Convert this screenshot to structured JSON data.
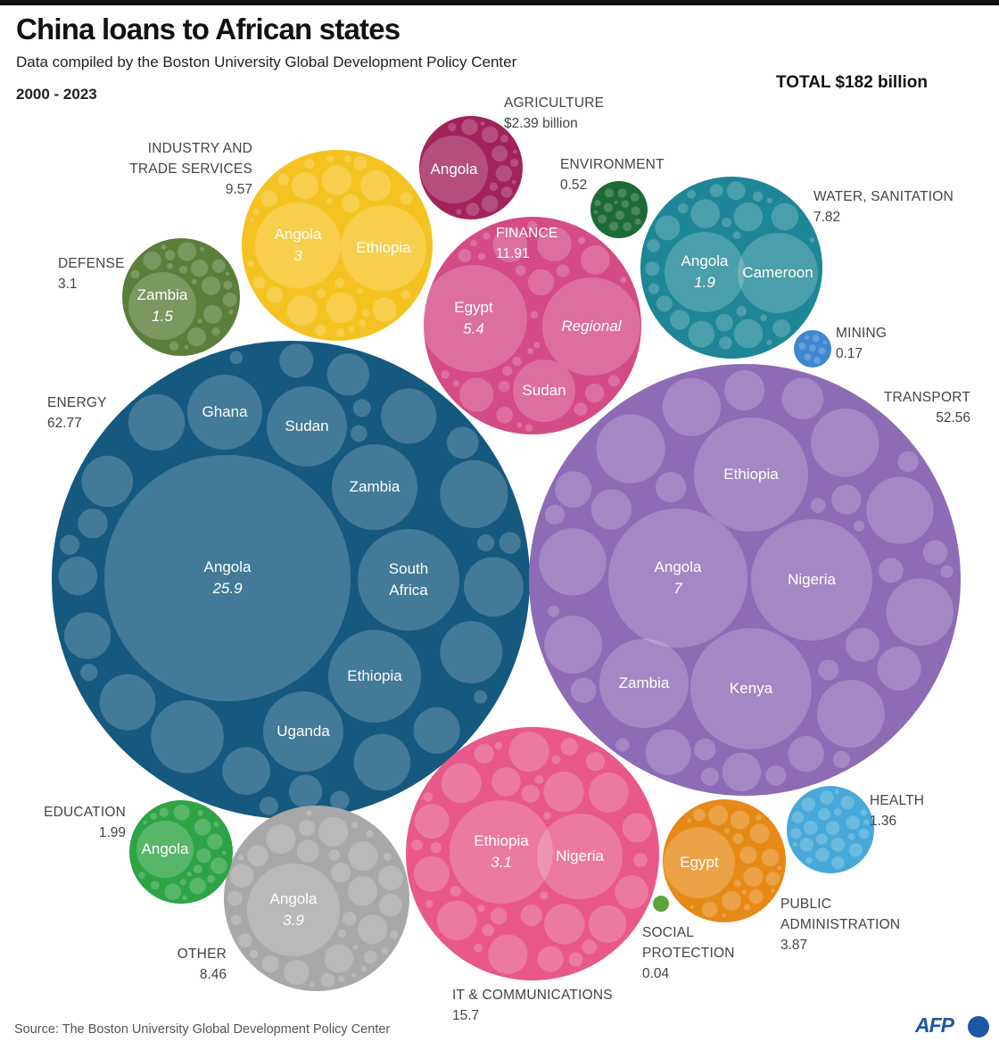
{
  "header": {
    "title": "China loans to African states",
    "subtitle": "Data compiled by the Boston University Global Development Policy Center",
    "period": "2000 - 2023",
    "total": "TOTAL $182 billion"
  },
  "footer": {
    "source": "Source: The Boston University Global Development Policy Center",
    "logo": "AFP"
  },
  "chart_data": {
    "type": "packed-bubble",
    "title": "China loans to African states",
    "unit": "$ billion",
    "total": 182,
    "sectors": [
      {
        "name": "ENERGY",
        "value": 62.77,
        "value_label": "62.77",
        "color": "#15597e",
        "countries": [
          {
            "name": "Angola",
            "value": 25.9
          },
          {
            "name": "Ghana"
          },
          {
            "name": "Sudan"
          },
          {
            "name": "Zambia"
          },
          {
            "name": "South Africa"
          },
          {
            "name": "Ethiopia"
          },
          {
            "name": "Uganda"
          }
        ]
      },
      {
        "name": "TRANSPORT",
        "value": 52.56,
        "value_label": "52.56",
        "color": "#8c6cb5",
        "countries": [
          {
            "name": "Ethiopia"
          },
          {
            "name": "Angola",
            "value": 7
          },
          {
            "name": "Nigeria"
          },
          {
            "name": "Zambia"
          },
          {
            "name": "Kenya"
          }
        ]
      },
      {
        "name": "IT & COMMUNICATIONS",
        "value": 15.7,
        "value_label": "15.7",
        "color": "#e8588a",
        "countries": [
          {
            "name": "Ethiopia",
            "value": 3.1
          },
          {
            "name": "Nigeria"
          }
        ]
      },
      {
        "name": "FINANCE",
        "value": 11.91,
        "value_label": "11.91",
        "color": "#d44b86",
        "countries": [
          {
            "name": "Egypt",
            "value": 5.4
          },
          {
            "name": "Regional",
            "italic": true
          },
          {
            "name": "Sudan"
          }
        ]
      },
      {
        "name": "INDUSTRY AND TRADE SERVICES",
        "value": 9.57,
        "value_label": "9.57",
        "color": "#f5c321",
        "countries": [
          {
            "name": "Angola",
            "value": 3
          },
          {
            "name": "Ethiopia"
          }
        ]
      },
      {
        "name": "OTHER",
        "value": 8.46,
        "value_label": "8.46",
        "color": "#a8a8a8",
        "countries": [
          {
            "name": "Angola",
            "value": 3.9
          }
        ]
      },
      {
        "name": "WATER, SANITATION",
        "value": 7.82,
        "value_label": "7.82",
        "color": "#1e8696",
        "countries": [
          {
            "name": "Angola",
            "value": 1.9
          },
          {
            "name": "Cameroon"
          }
        ]
      },
      {
        "name": "PUBLIC ADMINISTRATION",
        "value": 3.87,
        "value_label": "3.87",
        "color": "#e68a17",
        "countries": [
          {
            "name": "Egypt"
          }
        ]
      },
      {
        "name": "DEFENSE",
        "value": 3.1,
        "value_label": "3.1",
        "color": "#5b7f3a",
        "countries": [
          {
            "name": "Zambia",
            "value": 1.5
          }
        ]
      },
      {
        "name": "AGRICULTURE",
        "value": 2.39,
        "value_label": "$2.39 billion",
        "color": "#a2235b",
        "countries": [
          {
            "name": "Angola"
          }
        ]
      },
      {
        "name": "EDUCATION",
        "value": 1.99,
        "value_label": "1.99",
        "color": "#2fa447",
        "countries": [
          {
            "name": "Angola"
          }
        ]
      },
      {
        "name": "HEALTH",
        "value": 1.36,
        "value_label": "1.36",
        "color": "#46a9d9",
        "countries": []
      },
      {
        "name": "ENVIRONMENT",
        "value": 0.52,
        "value_label": "0.52",
        "color": "#1c6b35",
        "countries": []
      },
      {
        "name": "MINING",
        "value": 0.17,
        "value_label": "0.17",
        "color": "#3f87d0",
        "countries": []
      },
      {
        "name": "SOCIAL PROTECTION",
        "value": 0.04,
        "value_label": "0.04",
        "color": "#5ea43a",
        "countries": []
      }
    ]
  }
}
